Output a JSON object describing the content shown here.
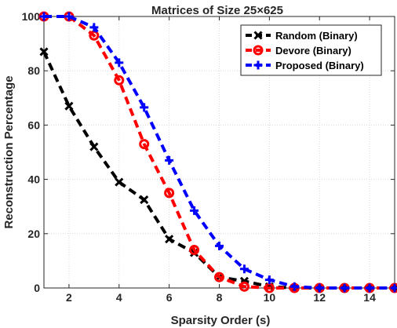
{
  "chart_data": {
    "type": "line",
    "title": "Matrices of Size 25×625",
    "xlabel": "Sparsity Order (s)",
    "ylabel": "Reconstruction Percentage",
    "xlim": [
      1,
      15
    ],
    "ylim": [
      0,
      100
    ],
    "xticks": [
      2,
      4,
      6,
      8,
      10,
      12,
      14
    ],
    "yticks": [
      0,
      20,
      40,
      60,
      80,
      100
    ],
    "grid": true,
    "legend_position": "top-right",
    "x": [
      1,
      2,
      3,
      4,
      5,
      6,
      7,
      8,
      9,
      10,
      11,
      12,
      13,
      14,
      15
    ],
    "series": [
      {
        "name": "Random (Binary)",
        "color": "#000000",
        "marker": "x",
        "values": [
          87,
          67,
          52,
          39,
          32.5,
          18,
          13,
          4,
          2.5,
          0.5,
          0,
          0,
          0,
          0,
          0
        ]
      },
      {
        "name": "Devore (Binary)",
        "color": "#ff0000",
        "marker": "o",
        "values": [
          100,
          100,
          93,
          76.5,
          53,
          35,
          14,
          4,
          0.5,
          0,
          0,
          0,
          0,
          0,
          0
        ]
      },
      {
        "name": "Proposed (Binary)",
        "color": "#0000ff",
        "marker": "+",
        "values": [
          100,
          100,
          96,
          83,
          66.5,
          47,
          28.5,
          15.5,
          7,
          3,
          0.5,
          0,
          0,
          0,
          0
        ]
      }
    ]
  }
}
